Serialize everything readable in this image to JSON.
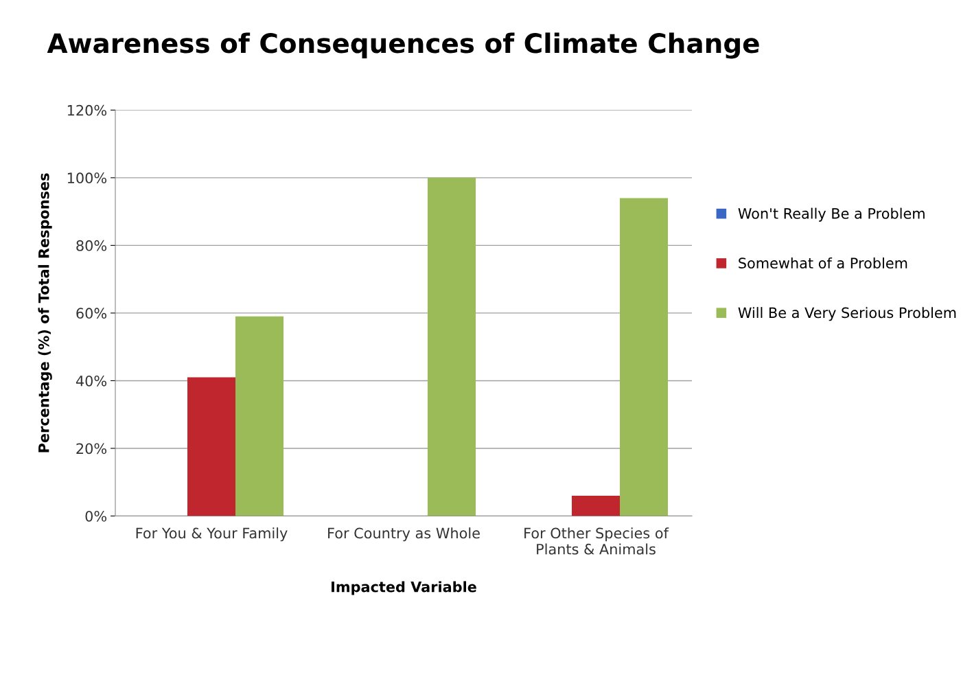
{
  "chart_data": {
    "type": "bar",
    "title": "Awareness of Consequences of Climate Change",
    "xlabel": "Impacted Variable",
    "ylabel": "Percentage (%) of Total Responses",
    "categories": [
      "For You & Your Family",
      "For Country as Whole",
      "For Other Species of\nPlants & Animals"
    ],
    "series": [
      {
        "name": "Won't Really Be a Problem",
        "color": "#3a66c4",
        "values": [
          0,
          0,
          0
        ]
      },
      {
        "name": "Somewhat of a Problem",
        "color": "#c0262e",
        "values": [
          41,
          0,
          6
        ]
      },
      {
        "name": "Will Be a Very Serious Problem",
        "color": "#9bbb59",
        "values": [
          59,
          100,
          94
        ]
      }
    ],
    "ylim": [
      0,
      120
    ],
    "yticks": [
      {
        "value": 0,
        "label": "0%"
      },
      {
        "value": 20,
        "label": "20%"
      },
      {
        "value": 40,
        "label": "40%"
      },
      {
        "value": 60,
        "label": "60%"
      },
      {
        "value": 80,
        "label": "80%"
      },
      {
        "value": 100,
        "label": "100%"
      },
      {
        "value": 120,
        "label": "120%"
      }
    ],
    "grid": "y",
    "legend": "right"
  }
}
